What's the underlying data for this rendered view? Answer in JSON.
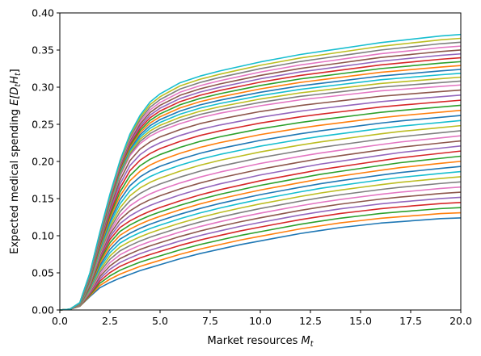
{
  "chart_data": {
    "type": "line",
    "title": "",
    "xlabel": {
      "main": "Market resources ",
      "var": "M",
      "sub": "t"
    },
    "ylabel": {
      "prefix": "Expected medical spending ",
      "var_open": "E[D",
      "sub1": "t",
      "var_mid": "H",
      "sub2": "t",
      "close": "]"
    },
    "xlim": [
      0,
      20
    ],
    "ylim": [
      0,
      0.4
    ],
    "xticks": [
      0,
      2.5,
      5,
      7.5,
      10,
      12.5,
      15,
      17.5,
      20
    ],
    "xtick_labels": [
      "0.0",
      "2.5",
      "5.0",
      "7.5",
      "10.0",
      "12.5",
      "15.0",
      "17.5",
      "20.0"
    ],
    "yticks": [
      0,
      0.05,
      0.1,
      0.15,
      0.2,
      0.25,
      0.3,
      0.35,
      0.4
    ],
    "ytick_labels": [
      "0.00",
      "0.05",
      "0.10",
      "0.15",
      "0.20",
      "0.25",
      "0.30",
      "0.35",
      "0.40"
    ],
    "grid": false,
    "legend": "none",
    "series_count": 40,
    "series_end_y_range": [
      0.124,
      0.371
    ],
    "x": [
      0,
      0.5,
      1,
      1.5,
      2,
      2.5,
      3,
      3.5,
      4,
      4.5,
      5,
      6,
      7,
      8,
      9,
      10,
      11,
      12,
      13,
      14,
      15,
      16,
      17,
      18,
      19,
      20
    ],
    "series": [
      {
        "values": [
          0,
          0.001,
          0.01,
          0.05,
          0.105,
          0.156,
          0.201,
          0.237,
          0.262,
          0.28,
          0.291,
          0.306,
          0.315,
          0.322,
          0.328,
          0.334,
          0.339,
          0.344,
          0.348,
          0.352,
          0.356,
          0.36,
          0.363,
          0.366,
          0.369,
          0.371
        ]
      },
      {
        "values": [
          0,
          0.001,
          0.009,
          0.045,
          0.095,
          0.141,
          0.18,
          0.208,
          0.224,
          0.234,
          0.241,
          0.251,
          0.259,
          0.265,
          0.27,
          0.275,
          0.279,
          0.283,
          0.286,
          0.289,
          0.292,
          0.295,
          0.297,
          0.299,
          0.301,
          0.303
        ]
      },
      {
        "values": [
          0,
          0.001,
          0.007,
          0.033,
          0.069,
          0.095,
          0.111,
          0.12,
          0.127,
          0.133,
          0.138,
          0.147,
          0.155,
          0.162,
          0.168,
          0.174,
          0.179,
          0.184,
          0.189,
          0.193,
          0.197,
          0.201,
          0.205,
          0.208,
          0.211,
          0.214
        ]
      },
      {
        "values": [
          0,
          0.001,
          0.005,
          0.018,
          0.03,
          0.037,
          0.043,
          0.048,
          0.053,
          0.057,
          0.061,
          0.069,
          0.076,
          0.082,
          0.088,
          0.093,
          0.098,
          0.103,
          0.107,
          0.111,
          0.114,
          0.117,
          0.119,
          0.121,
          0.123,
          0.124
        ]
      }
    ],
    "colors": [
      "#1f77b4",
      "#ff7f0e",
      "#2ca02c",
      "#d62728",
      "#9467bd",
      "#8c564b",
      "#e377c2",
      "#7f7f7f",
      "#bcbd22",
      "#17becf"
    ]
  }
}
